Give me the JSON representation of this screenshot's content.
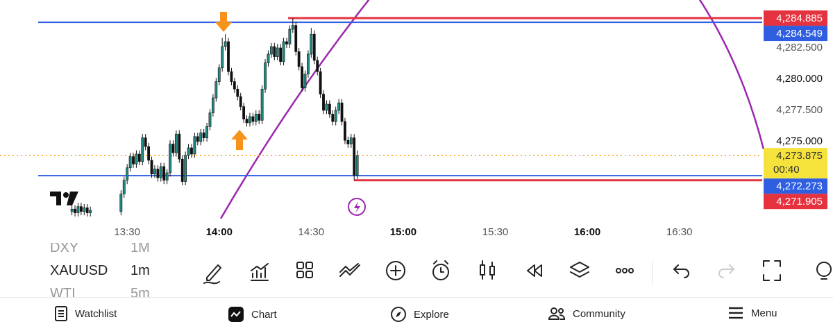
{
  "chart_data": {
    "type": "candlestick",
    "x": [
      "13:12",
      "13:13",
      "13:14",
      "13:15",
      "13:16",
      "13:17",
      "13:18",
      "13:28",
      "13:29",
      "13:30",
      "13:31",
      "13:32",
      "13:33",
      "13:34",
      "13:35",
      "13:36",
      "13:37",
      "13:38",
      "13:39",
      "13:40",
      "13:41",
      "13:42",
      "13:43",
      "13:44",
      "13:45",
      "13:46",
      "13:47",
      "13:48",
      "13:49",
      "13:50",
      "13:51",
      "13:52",
      "13:53",
      "13:54",
      "13:55",
      "13:56",
      "13:57",
      "13:58",
      "13:59",
      "14:00",
      "14:01",
      "14:02",
      "14:03",
      "14:04",
      "14:05",
      "14:06",
      "14:07",
      "14:08",
      "14:09",
      "14:10",
      "14:11",
      "14:12",
      "14:13",
      "14:14",
      "14:15",
      "14:16",
      "14:17",
      "14:18",
      "14:19",
      "14:20",
      "14:21",
      "14:22",
      "14:23",
      "14:24",
      "14:25",
      "14:26",
      "14:27",
      "14:28",
      "14:29",
      "14:30",
      "14:31",
      "14:32",
      "14:33",
      "14:34",
      "14:35",
      "14:36",
      "14:37",
      "14:38",
      "14:39",
      "14:40",
      "14:41",
      "14:42",
      "14:43",
      "14:44",
      "14:45"
    ],
    "open": [
      4269.4,
      4269.6,
      4269.3,
      4269.8,
      4269.4,
      4269.7,
      4269.3,
      4269.4,
      4270.8,
      4271.9,
      4272.9,
      4273.8,
      4273.2,
      4274.0,
      4273.4,
      4275.3,
      4274.6,
      4273.5,
      4272.4,
      4272.8,
      4272.1,
      4273.0,
      4271.9,
      4272.5,
      4274.8,
      4274.1,
      4275.6,
      4273.6,
      4271.8,
      4273.9,
      4274.5,
      4274.0,
      4275.4,
      4275.0,
      4275.7,
      4275.3,
      4276.2,
      4277.3,
      4278.5,
      4279.8,
      4280.9,
      4282.6,
      4283.0,
      4280.6,
      4279.8,
      4279.2,
      4278.6,
      4277.8,
      4276.8,
      4276.5,
      4277.0,
      4276.6,
      4277.2,
      4276.7,
      4279.2,
      4281.3,
      4282.0,
      4282.6,
      4281.8,
      4282.5,
      4281.4,
      4283.0,
      4282.8,
      4284.0,
      4284.3,
      4282.2,
      4281.0,
      4279.3,
      4280.4,
      4282.0,
      4283.6,
      4281.5,
      4280.6,
      4278.8,
      4277.5,
      4278.0,
      4277.2,
      4276.6,
      4277.5,
      4278.1,
      4276.6,
      4275.1,
      4274.8,
      4275.3,
      4272.3
    ],
    "high": [
      4269.9,
      4269.9,
      4270.1,
      4270.1,
      4270.0,
      4270.0,
      4269.8,
      4271.1,
      4272.2,
      4273.2,
      4274.1,
      4274.1,
      4274.3,
      4274.3,
      4275.6,
      4275.6,
      4274.9,
      4273.8,
      4273.1,
      4273.1,
      4273.3,
      4273.3,
      4272.8,
      4275.1,
      4275.1,
      4275.9,
      4275.9,
      4273.9,
      4274.2,
      4274.8,
      4274.8,
      4275.7,
      4275.7,
      4276.0,
      4276.0,
      4276.5,
      4277.6,
      4278.8,
      4280.1,
      4281.2,
      4283.3,
      4283.6,
      4283.3,
      4280.9,
      4280.1,
      4279.5,
      4278.9,
      4278.1,
      4277.1,
      4277.3,
      4277.3,
      4277.5,
      4277.5,
      4279.5,
      4281.6,
      4282.3,
      4282.9,
      4282.9,
      4282.8,
      4282.8,
      4283.3,
      4283.3,
      4284.3,
      4284.885,
      4284.6,
      4282.5,
      4281.3,
      4280.7,
      4282.3,
      4284.1,
      4283.9,
      4281.8,
      4280.9,
      4279.1,
      4278.3,
      4278.3,
      4277.5,
      4277.8,
      4278.4,
      4278.4,
      4276.9,
      4275.4,
      4275.6,
      4275.6,
      4274.3
    ],
    "low": [
      4269.1,
      4269.0,
      4269.0,
      4269.1,
      4269.1,
      4269.0,
      4269.0,
      4269.1,
      4270.5,
      4271.6,
      4272.6,
      4272.9,
      4272.9,
      4273.1,
      4273.1,
      4274.3,
      4273.2,
      4272.1,
      4272.1,
      4271.8,
      4271.8,
      4271.6,
      4271.6,
      4272.2,
      4273.8,
      4273.8,
      4273.3,
      4271.5,
      4271.5,
      4273.6,
      4273.7,
      4273.7,
      4274.7,
      4274.7,
      4275.0,
      4275.0,
      4275.9,
      4277.0,
      4278.2,
      4279.5,
      4280.6,
      4282.3,
      4280.3,
      4279.5,
      4278.9,
      4278.3,
      4277.5,
      4276.5,
      4276.2,
      4276.2,
      4276.3,
      4276.3,
      4276.4,
      4276.4,
      4278.9,
      4281.0,
      4281.7,
      4281.5,
      4281.5,
      4281.1,
      4281.1,
      4282.5,
      4282.5,
      4283.7,
      4281.9,
      4280.7,
      4279.0,
      4279.0,
      4280.1,
      4281.7,
      4281.2,
      4280.3,
      4278.5,
      4277.2,
      4277.2,
      4276.9,
      4276.3,
      4276.3,
      4277.2,
      4276.3,
      4274.8,
      4274.5,
      4274.5,
      4271.905,
      4272.0
    ],
    "close": [
      4269.6,
      4269.3,
      4269.8,
      4269.4,
      4269.7,
      4269.3,
      4269.5,
      4270.8,
      4271.9,
      4272.9,
      4273.8,
      4273.2,
      4274.0,
      4273.4,
      4275.3,
      4274.6,
      4273.5,
      4272.4,
      4272.8,
      4272.1,
      4273.0,
      4271.9,
      4272.5,
      4274.8,
      4274.1,
      4275.6,
      4273.6,
      4271.8,
      4273.9,
      4274.5,
      4274.0,
      4275.4,
      4275.0,
      4275.7,
      4275.3,
      4276.2,
      4277.3,
      4278.5,
      4279.8,
      4280.9,
      4282.6,
      4283.0,
      4280.6,
      4279.8,
      4279.2,
      4278.6,
      4277.8,
      4276.8,
      4276.5,
      4277.0,
      4276.6,
      4277.2,
      4276.7,
      4279.2,
      4281.3,
      4282.0,
      4282.6,
      4281.8,
      4282.5,
      4281.4,
      4283.0,
      4282.8,
      4284.0,
      4284.3,
      4282.2,
      4281.0,
      4279.3,
      4280.4,
      4282.0,
      4283.6,
      4281.5,
      4280.6,
      4278.8,
      4277.5,
      4278.0,
      4277.2,
      4276.6,
      4277.5,
      4278.1,
      4276.6,
      4275.1,
      4274.8,
      4275.3,
      4272.3,
      4273.875
    ],
    "up_color": "#1f8a84",
    "down_color": "#111111",
    "xlim": [
      "13:01",
      "16:57"
    ],
    "xticks": [
      "13:30",
      "14:00",
      "14:30",
      "15:00",
      "15:30",
      "16:00",
      "16:30"
    ],
    "ylim": [
      4268.667,
      4286.333
    ],
    "yticks": [
      {
        "value": 4282.5,
        "label": "4,282.500"
      },
      {
        "value": 4280,
        "label": "4,280.000"
      },
      {
        "value": 4277.5,
        "label": "4,277.500"
      },
      {
        "value": 4275,
        "label": "4,275.000"
      }
    ],
    "price_lines": [
      {
        "value": 4284.885,
        "label": "4,284.885",
        "color": "#e5323f"
      },
      {
        "value": 4284.549,
        "label": "4,284.549",
        "color": "#2f5fe0"
      },
      {
        "value": 4272.273,
        "label": "4,272.273",
        "color": "#2f5fe0"
      },
      {
        "value": 4271.905,
        "label": "4,271.905",
        "color": "#e5323f"
      }
    ],
    "last_price": {
      "value": 4273.875,
      "label": "4,273.875",
      "countdown": "00:40",
      "color": "#f5e33b"
    }
  },
  "watchlist": [
    {
      "symbol": "DXY",
      "interval": "1M"
    },
    {
      "symbol": "XAUUSD",
      "interval": "1m"
    },
    {
      "symbol": "WTI",
      "interval": "5m"
    }
  ],
  "nav": [
    "Watchlist",
    "Chart",
    "Explore",
    "Community",
    "Menu"
  ]
}
